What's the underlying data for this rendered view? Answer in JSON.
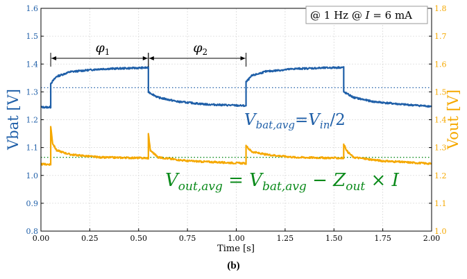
{
  "colors": {
    "left": "#1f5fa8",
    "right": "#f5a800",
    "green": "#0a8a1a",
    "axis": "#000000",
    "grid": "#d9d9d9"
  },
  "caption": "(b)",
  "chart_data": {
    "type": "line",
    "title": "",
    "xlabel": "Time [s]",
    "ylabel_left": "Vbat [V]",
    "ylabel_right": "Vout [V]",
    "xlim": [
      0.0,
      2.0
    ],
    "ylim_left": [
      0.8,
      1.6
    ],
    "ylim_right": [
      1.0,
      1.8
    ],
    "grid": true,
    "x_ticks": [
      "0.00",
      "0.25",
      "0.50",
      "0.75",
      "1.00",
      "1.25",
      "1.50",
      "1.75",
      "2.00"
    ],
    "y_ticks_left": [
      "0.8",
      "0.9",
      "1.0",
      "1.1",
      "1.2",
      "1.3",
      "1.4",
      "1.5",
      "1.6"
    ],
    "y_ticks_right": [
      "1.0",
      "1.1",
      "1.2",
      "1.3",
      "1.4",
      "1.5",
      "1.6",
      "1.7",
      "1.8"
    ],
    "series": [
      {
        "axis": "left",
        "points": [
          [
            0.0,
            1.245
          ],
          [
            0.05,
            1.245
          ],
          [
            0.05,
            1.33
          ],
          [
            0.08,
            1.355
          ],
          [
            0.15,
            1.372
          ],
          [
            0.3,
            1.382
          ],
          [
            0.55,
            1.387
          ],
          [
            0.55,
            1.3
          ],
          [
            0.6,
            1.28
          ],
          [
            0.7,
            1.265
          ],
          [
            0.85,
            1.255
          ],
          [
            1.05,
            1.25
          ],
          [
            1.05,
            1.335
          ],
          [
            1.08,
            1.358
          ],
          [
            1.15,
            1.373
          ],
          [
            1.3,
            1.383
          ],
          [
            1.55,
            1.388
          ],
          [
            1.55,
            1.3
          ],
          [
            1.6,
            1.28
          ],
          [
            1.7,
            1.265
          ],
          [
            1.85,
            1.255
          ],
          [
            2.0,
            1.248
          ]
        ]
      },
      {
        "axis": "right",
        "points": [
          [
            0.0,
            1.24
          ],
          [
            0.05,
            1.24
          ],
          [
            0.05,
            1.375
          ],
          [
            0.06,
            1.315
          ],
          [
            0.08,
            1.29
          ],
          [
            0.15,
            1.275
          ],
          [
            0.3,
            1.265
          ],
          [
            0.55,
            1.262
          ],
          [
            0.55,
            1.35
          ],
          [
            0.56,
            1.29
          ],
          [
            0.6,
            1.265
          ],
          [
            0.75,
            1.252
          ],
          [
            1.05,
            1.243
          ],
          [
            1.05,
            1.305
          ],
          [
            1.08,
            1.285
          ],
          [
            1.15,
            1.275
          ],
          [
            1.3,
            1.265
          ],
          [
            1.55,
            1.262
          ],
          [
            1.55,
            1.31
          ],
          [
            1.57,
            1.285
          ],
          [
            1.6,
            1.265
          ],
          [
            1.75,
            1.252
          ],
          [
            2.0,
            1.242
          ]
        ]
      }
    ],
    "reference_lines": [
      {
        "axis": "left",
        "y": 1.315
      },
      {
        "axis": "right",
        "y": 1.265
      }
    ],
    "phase_annotations": [
      {
        "label": "φ",
        "sub": "1",
        "x0": 0.05,
        "x1": 0.55
      },
      {
        "label": "φ",
        "sub": "2",
        "x0": 0.55,
        "x1": 1.05
      }
    ],
    "condition_box": {
      "prefix": "@ 1 Hz @ ",
      "var": "I",
      "suffix": " = 6 mA"
    },
    "annotations": [
      {
        "name": "vbat-avg-label",
        "text": "Vbat,avg=Vin/2"
      },
      {
        "name": "vout-avg-label",
        "text": "Vout,avg = Vbat,avg − Zout × I"
      }
    ]
  }
}
